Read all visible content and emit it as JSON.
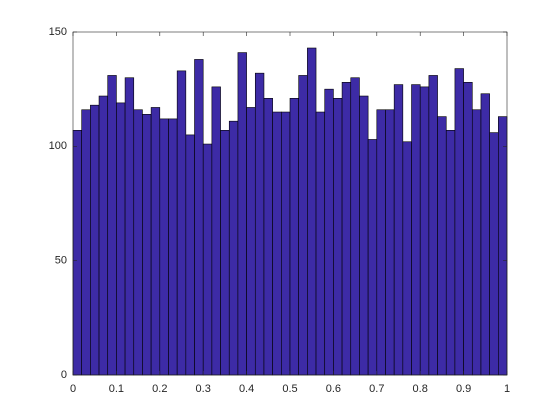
{
  "chart_data": {
    "type": "histogram",
    "bins": [
      0,
      0.02,
      0.04,
      0.06,
      0.08,
      0.1,
      0.12,
      0.14,
      0.16,
      0.18,
      0.2,
      0.22,
      0.24,
      0.26,
      0.28,
      0.3,
      0.32,
      0.34,
      0.36,
      0.38,
      0.4,
      0.42,
      0.44,
      0.46,
      0.48,
      0.5,
      0.52,
      0.54,
      0.56,
      0.58,
      0.6,
      0.62,
      0.64,
      0.66,
      0.68,
      0.7,
      0.72,
      0.74,
      0.76,
      0.78,
      0.8,
      0.82,
      0.84,
      0.86,
      0.88,
      0.9,
      0.92,
      0.94,
      0.96,
      0.98,
      1
    ],
    "values": [
      107,
      116,
      118,
      122,
      131,
      119,
      130,
      116,
      114,
      117,
      112,
      112,
      133,
      105,
      138,
      101,
      126,
      107,
      111,
      141,
      117,
      132,
      121,
      115,
      115,
      121,
      131,
      143,
      115,
      125,
      121,
      128,
      130,
      122,
      103,
      116,
      116,
      127,
      102,
      127,
      126,
      131,
      113,
      107,
      134,
      128,
      116,
      123,
      106,
      113
    ],
    "color": "#3d2ba6",
    "xlim": [
      0,
      1
    ],
    "xticks": [
      0,
      0.1,
      0.2,
      0.3,
      0.4,
      0.5,
      0.6,
      0.7,
      0.8,
      0.9,
      1
    ],
    "ylim": [
      0,
      150
    ],
    "yticks": [
      0,
      50,
      100,
      150
    ]
  }
}
